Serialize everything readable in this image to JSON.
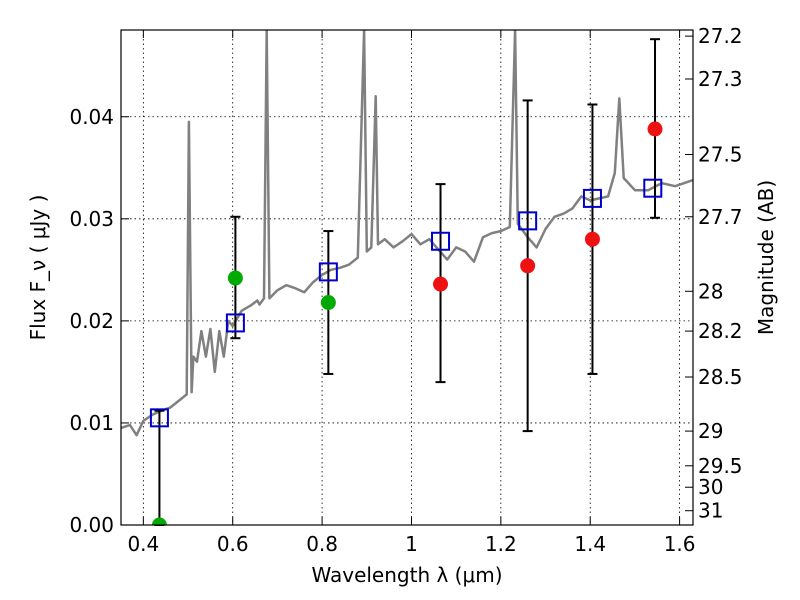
{
  "chart_data": {
    "type": "scatter",
    "xlabel": "Wavelength  λ (μm)",
    "ylabel": "Flux  F_ν  ( μJy )",
    "ylabel_right": "Magnitude (AB)",
    "xlim": [
      0.35,
      1.63
    ],
    "ylim": [
      0.0,
      0.0485
    ],
    "x_ticks": [
      {
        "value": 0.4,
        "label": "0.4"
      },
      {
        "value": 0.6,
        "label": "0.6"
      },
      {
        "value": 0.8,
        "label": "0.8"
      },
      {
        "value": 1.0,
        "label": "1"
      },
      {
        "value": 1.2,
        "label": "1.2"
      },
      {
        "value": 1.4,
        "label": "1.4"
      },
      {
        "value": 1.6,
        "label": "1.6"
      }
    ],
    "y_ticks": [
      {
        "value": 0.0,
        "label": "0.00"
      },
      {
        "value": 0.01,
        "label": "0.01"
      },
      {
        "value": 0.02,
        "label": "0.02"
      },
      {
        "value": 0.03,
        "label": "0.03"
      },
      {
        "value": 0.04,
        "label": "0.04"
      }
    ],
    "right_ticks": [
      {
        "flux": 0.0479,
        "label": "27.2"
      },
      {
        "flux": 0.0437,
        "label": "27.3"
      },
      {
        "flux": 0.0363,
        "label": "27.5"
      },
      {
        "flux": 0.0302,
        "label": "27.7"
      },
      {
        "flux": 0.0229,
        "label": "28"
      },
      {
        "flux": 0.019,
        "label": "28.2"
      },
      {
        "flux": 0.0145,
        "label": "28.5"
      },
      {
        "flux": 0.0092,
        "label": "29"
      },
      {
        "flux": 0.0058,
        "label": "29.5"
      },
      {
        "flux": 0.0037,
        "label": "30"
      },
      {
        "flux": 0.0014,
        "label": "31"
      }
    ],
    "grid": true,
    "spectrum": {
      "color": "#808080",
      "points": [
        [
          0.35,
          0.0095
        ],
        [
          0.37,
          0.0098
        ],
        [
          0.385,
          0.0088
        ],
        [
          0.4,
          0.0102
        ],
        [
          0.42,
          0.0108
        ],
        [
          0.44,
          0.0112
        ],
        [
          0.46,
          0.0115
        ],
        [
          0.48,
          0.0122
        ],
        [
          0.497,
          0.0128
        ],
        [
          0.502,
          0.0395
        ],
        [
          0.508,
          0.013
        ],
        [
          0.512,
          0.0165
        ],
        [
          0.52,
          0.016
        ],
        [
          0.53,
          0.019
        ],
        [
          0.54,
          0.0165
        ],
        [
          0.55,
          0.0192
        ],
        [
          0.56,
          0.015
        ],
        [
          0.57,
          0.019
        ],
        [
          0.58,
          0.0165
        ],
        [
          0.59,
          0.02
        ],
        [
          0.6,
          0.0195
        ],
        [
          0.62,
          0.021
        ],
        [
          0.64,
          0.0215
        ],
        [
          0.655,
          0.022
        ],
        [
          0.66,
          0.0216
        ],
        [
          0.67,
          0.0222
        ],
        [
          0.676,
          0.0485
        ],
        [
          0.682,
          0.0222
        ],
        [
          0.7,
          0.023
        ],
        [
          0.72,
          0.0235
        ],
        [
          0.74,
          0.0232
        ],
        [
          0.76,
          0.0228
        ],
        [
          0.78,
          0.0238
        ],
        [
          0.8,
          0.0245
        ],
        [
          0.82,
          0.025
        ],
        [
          0.84,
          0.0252
        ],
        [
          0.86,
          0.0255
        ],
        [
          0.88,
          0.0262
        ],
        [
          0.894,
          0.0485
        ],
        [
          0.9,
          0.0268
        ],
        [
          0.91,
          0.0272
        ],
        [
          0.92,
          0.042
        ],
        [
          0.925,
          0.0275
        ],
        [
          0.94,
          0.028
        ],
        [
          0.96,
          0.0272
        ],
        [
          0.98,
          0.0278
        ],
        [
          1.0,
          0.0285
        ],
        [
          1.02,
          0.0275
        ],
        [
          1.04,
          0.028
        ],
        [
          1.06,
          0.027
        ],
        [
          1.08,
          0.026
        ],
        [
          1.1,
          0.0272
        ],
        [
          1.12,
          0.0268
        ],
        [
          1.14,
          0.0258
        ],
        [
          1.16,
          0.0282
        ],
        [
          1.18,
          0.0286
        ],
        [
          1.2,
          0.0288
        ],
        [
          1.22,
          0.0292
        ],
        [
          1.232,
          0.0485
        ],
        [
          1.238,
          0.0295
        ],
        [
          1.26,
          0.0282
        ],
        [
          1.28,
          0.0272
        ],
        [
          1.3,
          0.029
        ],
        [
          1.32,
          0.0302
        ],
        [
          1.34,
          0.0305
        ],
        [
          1.36,
          0.031
        ],
        [
          1.38,
          0.0322
        ],
        [
          1.4,
          0.0318
        ],
        [
          1.42,
          0.032
        ],
        [
          1.44,
          0.0322
        ],
        [
          1.455,
          0.0345
        ],
        [
          1.465,
          0.0418
        ],
        [
          1.475,
          0.034
        ],
        [
          1.5,
          0.0328
        ],
        [
          1.53,
          0.0328
        ],
        [
          1.56,
          0.0335
        ],
        [
          1.59,
          0.0332
        ],
        [
          1.63,
          0.0338
        ]
      ]
    },
    "series": [
      {
        "marker": "open-square",
        "color": "#0000cc",
        "points": [
          {
            "x": 0.436,
            "y": 0.0105
          },
          {
            "x": 0.606,
            "y": 0.0198
          },
          {
            "x": 0.814,
            "y": 0.0248
          },
          {
            "x": 1.065,
            "y": 0.0278
          },
          {
            "x": 1.26,
            "y": 0.0298
          },
          {
            "x": 1.405,
            "y": 0.032
          },
          {
            "x": 1.54,
            "y": 0.033
          }
        ]
      },
      {
        "marker": "filled-circle",
        "color": "#00aa00",
        "points": [
          {
            "x": 0.436,
            "y": 0.0
          },
          {
            "x": 0.606,
            "y": 0.0242
          },
          {
            "x": 0.814,
            "y": 0.0218
          }
        ]
      },
      {
        "marker": "filled-circle",
        "color": "#ee1111",
        "points": [
          {
            "x": 1.065,
            "y": 0.0236
          },
          {
            "x": 1.26,
            "y": 0.0254
          },
          {
            "x": 1.405,
            "y": 0.028
          },
          {
            "x": 1.545,
            "y": 0.0388
          }
        ]
      }
    ],
    "error_bars": [
      {
        "x": 0.436,
        "low": 0.0,
        "high": 0.0112
      },
      {
        "x": 0.606,
        "low": 0.0183,
        "high": 0.0302
      },
      {
        "x": 0.814,
        "low": 0.0148,
        "high": 0.0288
      },
      {
        "x": 1.065,
        "low": 0.014,
        "high": 0.0334
      },
      {
        "x": 1.26,
        "low": 0.0092,
        "high": 0.0416
      },
      {
        "x": 1.405,
        "low": 0.0148,
        "high": 0.0412
      },
      {
        "x": 1.545,
        "low": 0.0301,
        "high": 0.0476
      }
    ]
  }
}
